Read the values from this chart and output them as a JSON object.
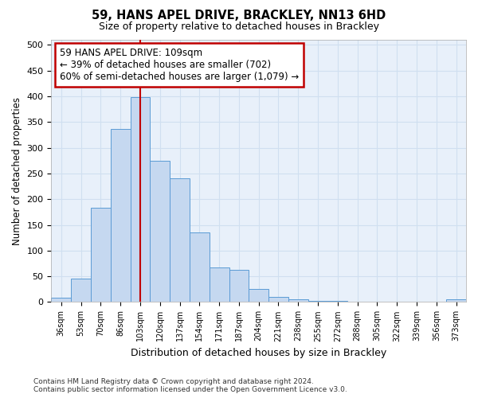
{
  "title1": "59, HANS APEL DRIVE, BRACKLEY, NN13 6HD",
  "title2": "Size of property relative to detached houses in Brackley",
  "xlabel": "Distribution of detached houses by size in Brackley",
  "ylabel": "Number of detached properties",
  "categories": [
    "36sqm",
    "53sqm",
    "70sqm",
    "86sqm",
    "103sqm",
    "120sqm",
    "137sqm",
    "154sqm",
    "171sqm",
    "187sqm",
    "204sqm",
    "221sqm",
    "238sqm",
    "255sqm",
    "272sqm",
    "288sqm",
    "305sqm",
    "322sqm",
    "339sqm",
    "356sqm",
    "373sqm"
  ],
  "values": [
    8,
    46,
    183,
    337,
    398,
    275,
    240,
    135,
    68,
    62,
    25,
    10,
    5,
    3,
    2,
    1,
    1,
    0,
    0,
    0,
    5
  ],
  "bar_color": "#c5d8f0",
  "bar_edge_color": "#5b9bd5",
  "vline_x": 4,
  "vline_color": "#c00000",
  "annotation_line1": "59 HANS APEL DRIVE: 109sqm",
  "annotation_line2": "← 39% of detached houses are smaller (702)",
  "annotation_line3": "60% of semi-detached houses are larger (1,079) →",
  "annotation_box_color": "#c00000",
  "ylim": [
    0,
    510
  ],
  "yticks": [
    0,
    50,
    100,
    150,
    200,
    250,
    300,
    350,
    400,
    450,
    500
  ],
  "grid_color": "#d0dff0",
  "bg_color": "#e8f0fa",
  "footer1": "Contains HM Land Registry data © Crown copyright and database right 2024.",
  "footer2": "Contains public sector information licensed under the Open Government Licence v3.0."
}
